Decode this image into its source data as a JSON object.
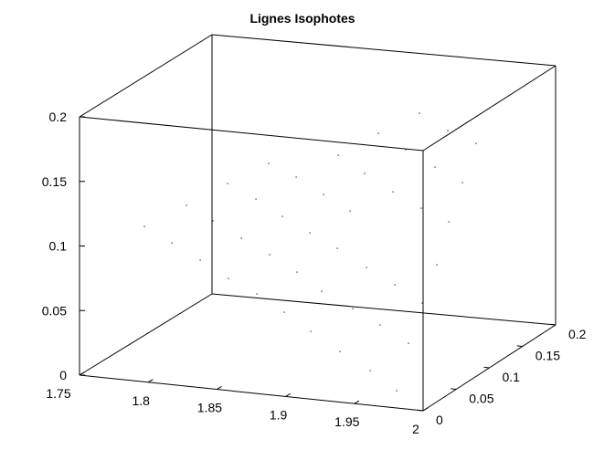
{
  "chart_data": {
    "type": "scatter",
    "title": "Lignes Isophotes",
    "xlabel": "",
    "ylabel": "",
    "zlabel": "",
    "xlim": [
      1.75,
      2
    ],
    "ylim": [
      0,
      0.2
    ],
    "zlim": [
      0,
      0.2
    ],
    "x_ticks": [
      "1.75",
      "1.8",
      "1.85",
      "1.9",
      "1.95",
      "2"
    ],
    "y_ticks": [
      "0",
      "0.05",
      "0.1",
      "0.15",
      "0.2"
    ],
    "z_ticks": [
      "0",
      "0.05",
      "0.1",
      "0.15",
      "0.2"
    ],
    "grid": false,
    "box": true,
    "colors": {
      "points": "#0000ff",
      "axes": "#000000"
    },
    "points_screen_approx": [
      [
        158,
        248
      ],
      [
        188,
        266
      ],
      [
        204,
        225
      ],
      [
        219,
        285
      ],
      [
        233,
        242
      ],
      [
        249,
        201
      ],
      [
        250,
        305
      ],
      [
        264,
        261
      ],
      [
        280,
        218
      ],
      [
        281,
        322
      ],
      [
        294,
        179
      ],
      [
        295,
        279
      ],
      [
        309,
        237
      ],
      [
        324,
        194
      ],
      [
        325,
        298
      ],
      [
        311,
        342
      ],
      [
        339,
        255
      ],
      [
        340,
        363
      ],
      [
        352,
        319
      ],
      [
        354,
        213
      ],
      [
        369,
        272
      ],
      [
        370,
        170
      ],
      [
        372,
        385
      ],
      [
        383,
        231
      ],
      [
        386,
        338
      ],
      [
        399,
        190
      ],
      [
        401,
        293
      ],
      [
        405,
        406
      ],
      [
        414,
        146
      ],
      [
        416,
        356
      ],
      [
        430,
        210
      ],
      [
        432,
        312
      ],
      [
        434,
        428
      ],
      [
        444,
        164
      ],
      [
        447,
        376
      ],
      [
        459,
        124
      ],
      [
        461,
        228
      ],
      [
        462,
        332
      ],
      [
        476,
        183
      ],
      [
        478,
        290
      ],
      [
        490,
        143
      ],
      [
        491,
        243
      ],
      [
        506,
        200
      ],
      [
        521,
        157
      ]
    ]
  }
}
